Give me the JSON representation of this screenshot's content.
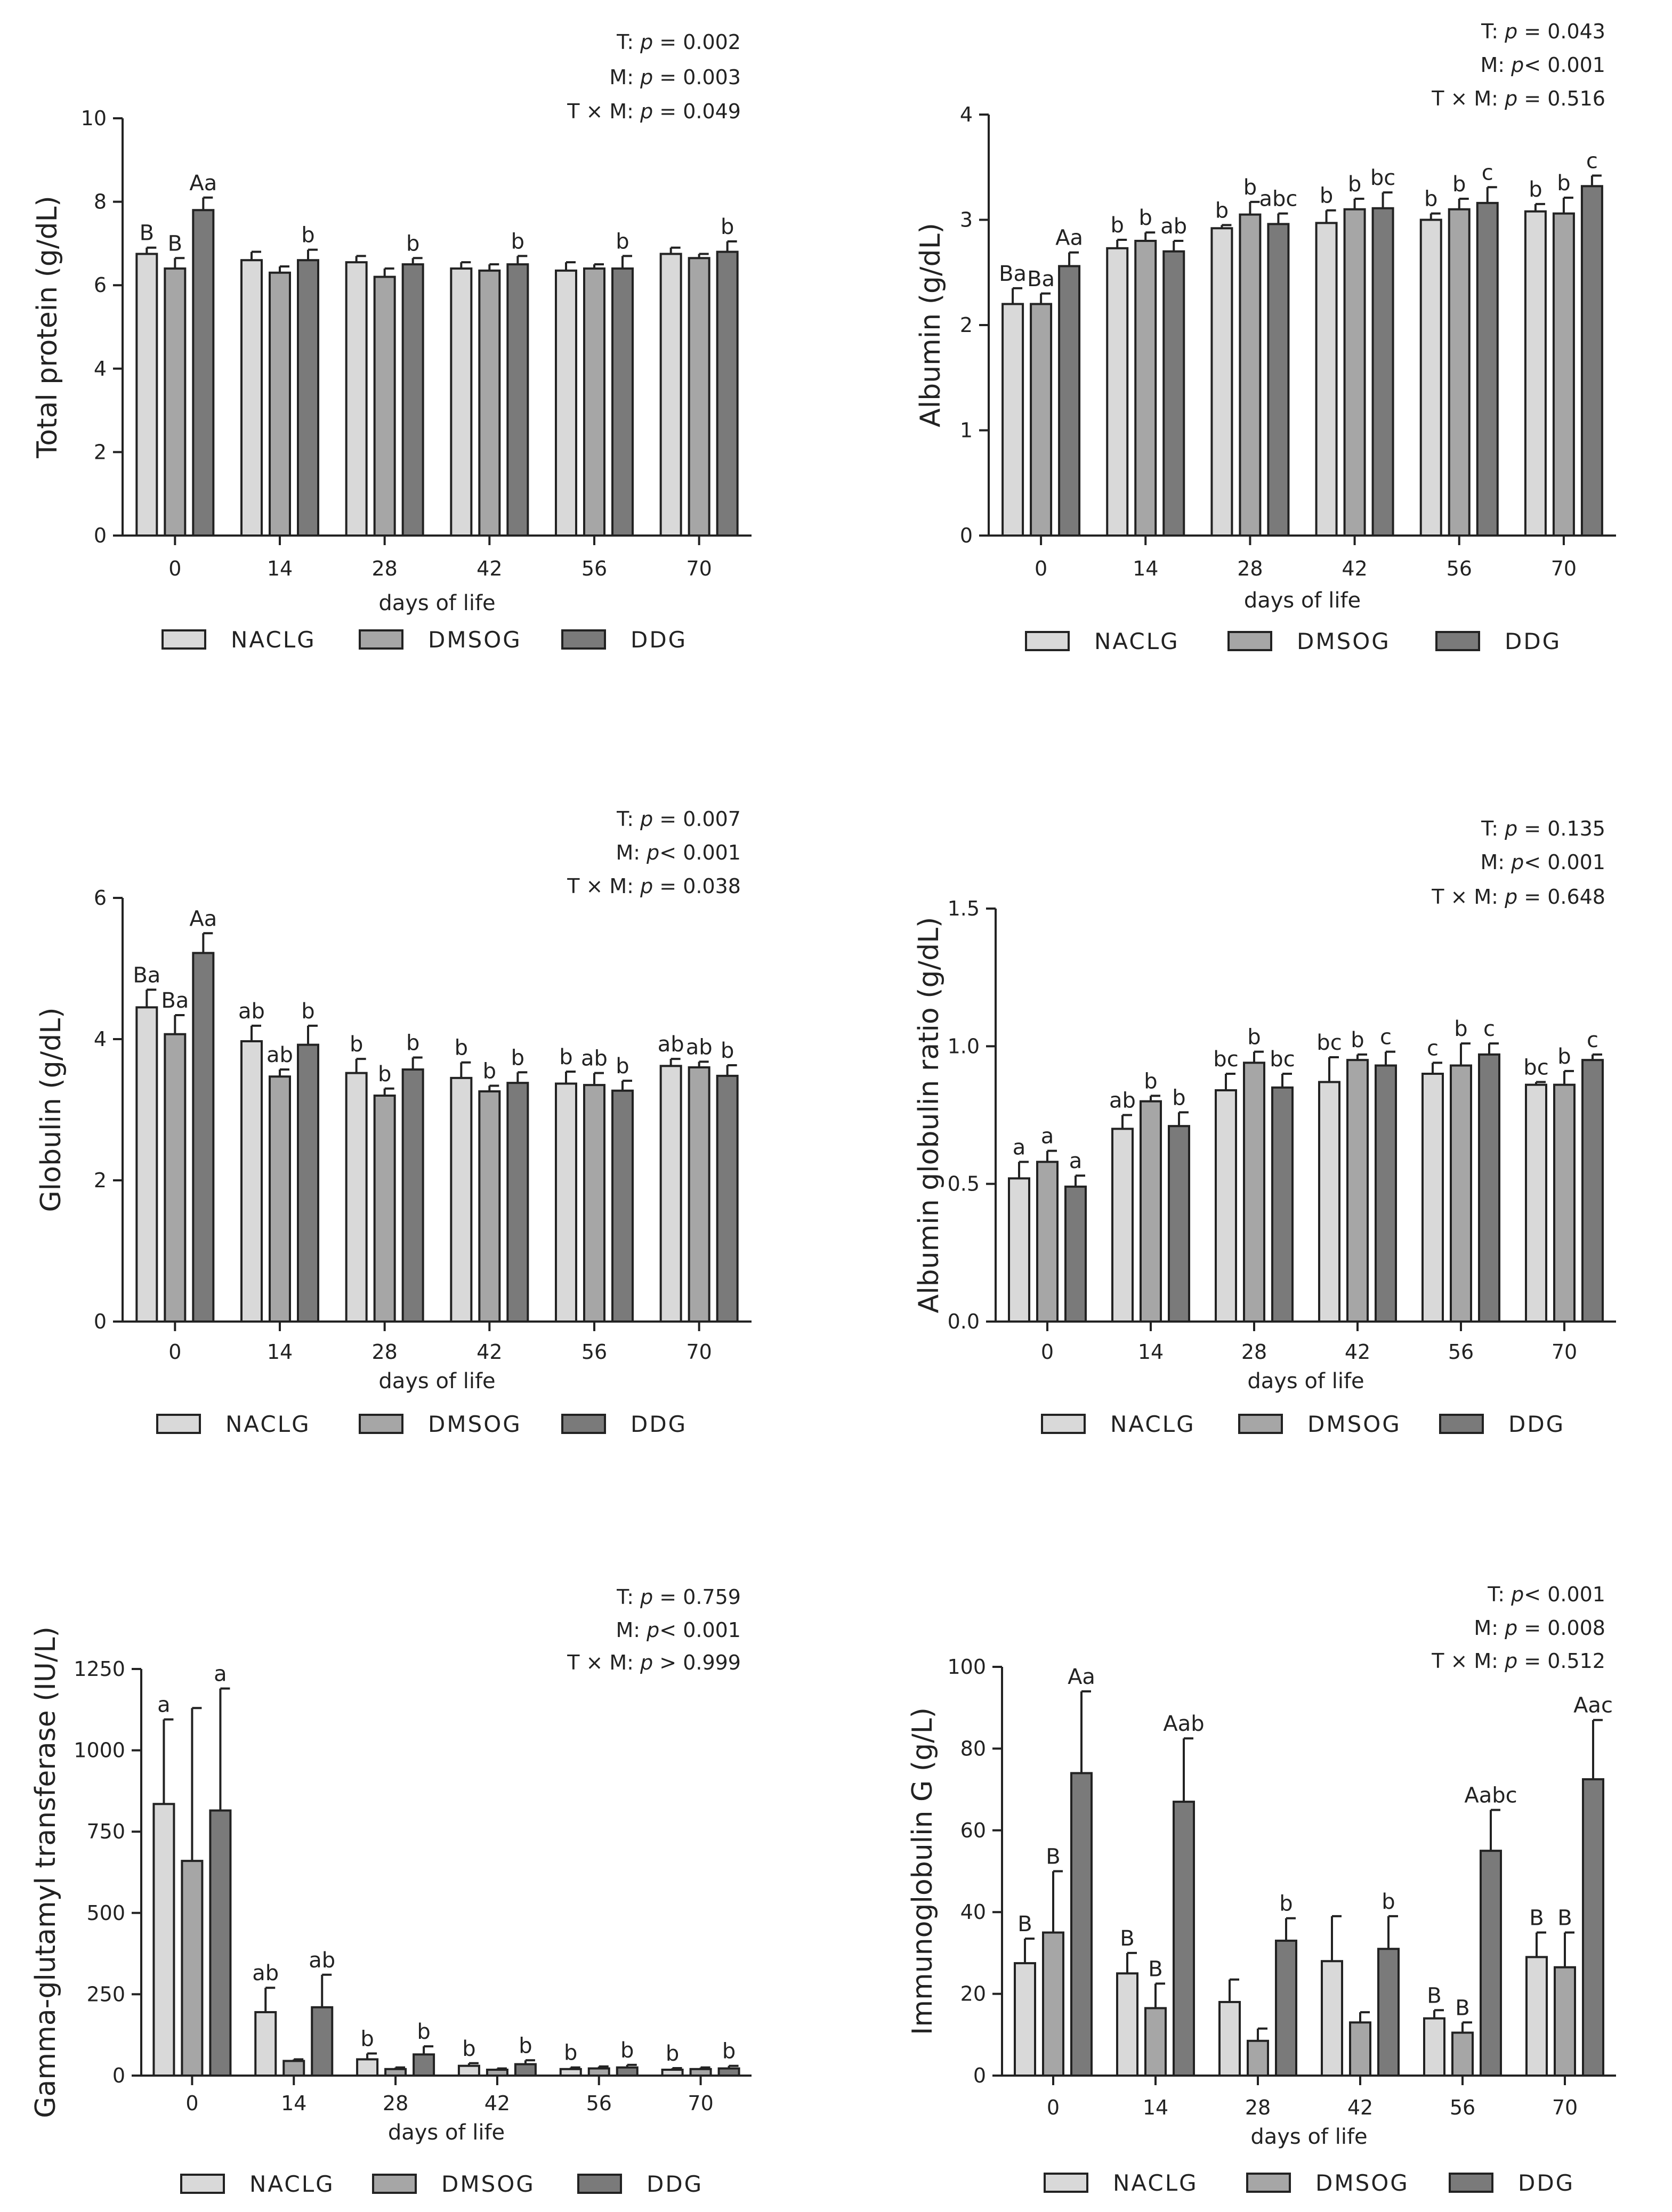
{
  "figure": {
    "group_names": [
      "NACLG",
      "DMSOG",
      "DDG"
    ],
    "colors": {
      "NACLG": "#d9d9d9",
      "DMSOG": "#a6a6a6",
      "DDG": "#7a7a7a",
      "axis": "#222222"
    }
  },
  "chart_data": [
    {
      "type": "bar",
      "id": "total-protein",
      "ylabel": "Total protein (g/dL)",
      "xlabel": "days of life",
      "categories": [
        "0",
        "14",
        "28",
        "42",
        "56",
        "70"
      ],
      "ylim": [
        0,
        10
      ],
      "yticks": [
        0,
        2,
        4,
        6,
        8,
        10
      ],
      "stats": [
        {
          "prefix": "T: ",
          "p": "p",
          "rest": " = 0.002"
        },
        {
          "prefix": "M: ",
          "p": "p",
          "rest": " = 0.003"
        },
        {
          "prefix": "T × M: ",
          "p": "p",
          "rest": " = 0.049"
        }
      ],
      "series": [
        {
          "name": "NACLG",
          "values": [
            6.75,
            6.6,
            6.55,
            6.4,
            6.35,
            6.75
          ],
          "errors": [
            0.15,
            0.2,
            0.15,
            0.15,
            0.2,
            0.15
          ],
          "labels": [
            "B",
            "",
            "",
            "",
            "",
            ""
          ]
        },
        {
          "name": "DMSOG",
          "values": [
            6.4,
            6.3,
            6.2,
            6.35,
            6.4,
            6.65
          ],
          "errors": [
            0.25,
            0.15,
            0.2,
            0.15,
            0.1,
            0.1
          ],
          "labels": [
            "B",
            "",
            "",
            "",
            "",
            ""
          ]
        },
        {
          "name": "DDG",
          "values": [
            7.8,
            6.6,
            6.5,
            6.5,
            6.4,
            6.8
          ],
          "errors": [
            0.3,
            0.25,
            0.15,
            0.2,
            0.3,
            0.25
          ],
          "labels": [
            "Aa",
            "b",
            "b",
            "b",
            "b",
            "b"
          ]
        }
      ]
    },
    {
      "type": "bar",
      "id": "albumin",
      "ylabel": "Albumin (g/dL)",
      "xlabel": "days of life",
      "categories": [
        "0",
        "14",
        "28",
        "42",
        "56",
        "70"
      ],
      "ylim": [
        0,
        4
      ],
      "yticks": [
        0,
        1,
        2,
        3,
        4
      ],
      "stats": [
        {
          "prefix": "T: ",
          "p": "p",
          "rest": " = 0.043"
        },
        {
          "prefix": "M: ",
          "p": "p",
          "rest": "< 0.001"
        },
        {
          "prefix": "T × M: ",
          "p": "p",
          "rest": " =  0.516"
        }
      ],
      "series": [
        {
          "name": "NACLG",
          "values": [
            2.2,
            2.73,
            2.92,
            2.97,
            3.0,
            3.08
          ],
          "errors": [
            0.15,
            0.08,
            0.03,
            0.12,
            0.06,
            0.07
          ],
          "labels": [
            "Ba",
            "b",
            "b",
            "b",
            "b",
            "b"
          ]
        },
        {
          "name": "DMSOG",
          "values": [
            2.2,
            2.8,
            3.05,
            3.1,
            3.1,
            3.06
          ],
          "errors": [
            0.1,
            0.08,
            0.12,
            0.1,
            0.1,
            0.15
          ],
          "labels": [
            "Ba",
            "b",
            "b",
            "b",
            "b",
            "b"
          ]
        },
        {
          "name": "DDG",
          "values": [
            2.56,
            2.7,
            2.96,
            3.11,
            3.16,
            3.32
          ],
          "errors": [
            0.13,
            0.1,
            0.1,
            0.15,
            0.15,
            0.1
          ],
          "labels": [
            "Aa",
            "ab",
            "abc",
            "bc",
            "c",
            "c"
          ]
        }
      ]
    },
    {
      "type": "bar",
      "id": "globulin",
      "ylabel": "Globulin (g/dL)",
      "xlabel": "days of life",
      "categories": [
        "0",
        "14",
        "28",
        "42",
        "56",
        "70"
      ],
      "ylim": [
        0,
        6
      ],
      "yticks": [
        0,
        2,
        4,
        6
      ],
      "stats": [
        {
          "prefix": "T: ",
          "p": "p",
          "rest": " = 0.007"
        },
        {
          "prefix": "M: ",
          "p": "p",
          "rest": "< 0.001"
        },
        {
          "prefix": "T × M: ",
          "p": "p",
          "rest": " = 0.038"
        }
      ],
      "series": [
        {
          "name": "NACLG",
          "values": [
            4.45,
            3.97,
            3.52,
            3.45,
            3.37,
            3.62
          ],
          "errors": [
            0.25,
            0.22,
            0.2,
            0.22,
            0.17,
            0.1
          ],
          "labels": [
            "Ba",
            "ab",
            "b",
            "b",
            "b",
            "ab"
          ]
        },
        {
          "name": "DMSOG",
          "values": [
            4.07,
            3.47,
            3.2,
            3.26,
            3.35,
            3.6
          ],
          "errors": [
            0.27,
            0.1,
            0.1,
            0.08,
            0.17,
            0.08
          ],
          "labels": [
            "Ba",
            "ab",
            "b",
            "b",
            "ab",
            "ab"
          ]
        },
        {
          "name": "DDG",
          "values": [
            5.22,
            3.92,
            3.57,
            3.38,
            3.27,
            3.48
          ],
          "errors": [
            0.28,
            0.27,
            0.17,
            0.15,
            0.14,
            0.15
          ],
          "labels": [
            "Aa",
            "b",
            "b",
            "b",
            "b",
            "b"
          ]
        }
      ]
    },
    {
      "type": "bar",
      "id": "ag-ratio",
      "ylabel": "Albumin globulin ratio (g/dL)",
      "xlabel": "days of life",
      "categories": [
        "0",
        "14",
        "28",
        "42",
        "56",
        "70"
      ],
      "ylim": [
        0,
        1.5
      ],
      "yticks": [
        "0.0",
        "0.5",
        "1.0",
        "1.5"
      ],
      "stats": [
        {
          "prefix": "T: ",
          "p": "p",
          "rest": " = 0.135"
        },
        {
          "prefix": "M: ",
          "p": "p",
          "rest": "< 0.001"
        },
        {
          "prefix": "T × M: ",
          "p": "p",
          "rest": " = 0.648"
        }
      ],
      "series": [
        {
          "name": "NACLG",
          "values": [
            0.52,
            0.7,
            0.84,
            0.87,
            0.9,
            0.86
          ],
          "errors": [
            0.06,
            0.05,
            0.06,
            0.09,
            0.04,
            0.01
          ],
          "labels": [
            "a",
            "ab",
            "bc",
            "bc",
            "c",
            "bc"
          ]
        },
        {
          "name": "DMSOG",
          "values": [
            0.58,
            0.8,
            0.94,
            0.95,
            0.93,
            0.86
          ],
          "errors": [
            0.04,
            0.02,
            0.04,
            0.02,
            0.08,
            0.05
          ],
          "labels": [
            "a",
            "b",
            "b",
            "b",
            "b",
            "b"
          ]
        },
        {
          "name": "DDG",
          "values": [
            0.49,
            0.71,
            0.85,
            0.93,
            0.97,
            0.95
          ],
          "errors": [
            0.04,
            0.05,
            0.05,
            0.05,
            0.04,
            0.02
          ],
          "labels": [
            "a",
            "b",
            "bc",
            "c",
            "c",
            "c"
          ]
        }
      ]
    },
    {
      "type": "bar",
      "id": "ggt",
      "ylabel": "Gamma-glutamyl transferase (IU/L)",
      "xlabel": "days of life",
      "categories": [
        "0",
        "14",
        "28",
        "42",
        "56",
        "70"
      ],
      "ylim": [
        0,
        1250
      ],
      "yticks": [
        0,
        250,
        500,
        750,
        1000,
        1250
      ],
      "stats": [
        {
          "prefix": "T: ",
          "p": "p",
          "rest": " = 0.759"
        },
        {
          "prefix": "M: ",
          "p": "p",
          "rest": "< 0.001"
        },
        {
          "prefix": "T × M: ",
          "p": "p",
          "rest": " > 0.999"
        }
      ],
      "series": [
        {
          "name": "NACLG",
          "values": [
            835,
            195,
            50,
            30,
            20,
            18
          ],
          "errors": [
            260,
            75,
            18,
            8,
            5,
            5
          ],
          "labels": [
            "a",
            "ab",
            "b",
            "b",
            "b",
            "b"
          ]
        },
        {
          "name": "DMSOG",
          "values": [
            660,
            45,
            20,
            18,
            22,
            20
          ],
          "errors": [
            470,
            5,
            5,
            4,
            6,
            5
          ],
          "labels": [
            "",
            "",
            "",
            "",
            "",
            ""
          ]
        },
        {
          "name": "DDG",
          "values": [
            815,
            210,
            65,
            35,
            25,
            22
          ],
          "errors": [
            375,
            100,
            25,
            12,
            8,
            8
          ],
          "labels": [
            "a",
            "ab",
            "b",
            "b",
            "b",
            "b"
          ]
        }
      ]
    },
    {
      "type": "bar",
      "id": "igg",
      "ylabel": "Immunoglobulin G (g/L)",
      "xlabel": "days of life",
      "categories": [
        "0",
        "14",
        "28",
        "42",
        "56",
        "70"
      ],
      "ylim": [
        0,
        100
      ],
      "yticks": [
        0,
        20,
        40,
        60,
        80,
        100
      ],
      "stats": [
        {
          "prefix": "T: ",
          "p": "p",
          "rest": "< 0.001"
        },
        {
          "prefix": "M: ",
          "p": "p",
          "rest": " = 0.008"
        },
        {
          "prefix": "T × M: ",
          "p": "p",
          "rest": " = 0.512"
        }
      ],
      "series": [
        {
          "name": "NACLG",
          "values": [
            27.5,
            25,
            18,
            28,
            14,
            29
          ],
          "errors": [
            6,
            5,
            5.5,
            11,
            2,
            6
          ],
          "labels": [
            "B",
            "B",
            "",
            "",
            "B",
            "B"
          ]
        },
        {
          "name": "DMSOG",
          "values": [
            35,
            16.5,
            8.5,
            13,
            10.5,
            26.5
          ],
          "errors": [
            15,
            6,
            3,
            2.5,
            2.5,
            8.5
          ],
          "labels": [
            "B",
            "B",
            "",
            "",
            "B",
            "B"
          ]
        },
        {
          "name": "DDG",
          "values": [
            74,
            67,
            33,
            31,
            55,
            72.5
          ],
          "errors": [
            20,
            15.5,
            5.5,
            8,
            10,
            14.5
          ],
          "labels": [
            "Aa",
            "Aab",
            "b",
            "b",
            "Aabc",
            "Aac"
          ]
        }
      ]
    }
  ]
}
